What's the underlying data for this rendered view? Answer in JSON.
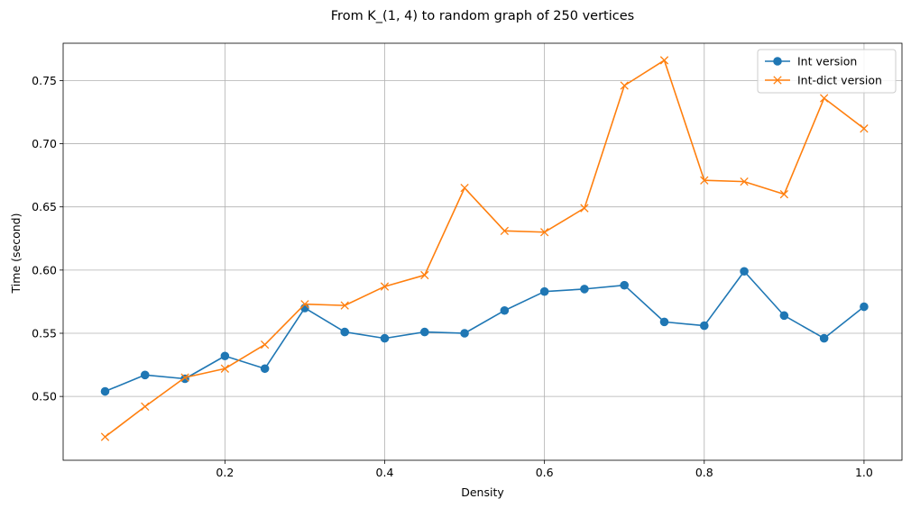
{
  "chart_data": {
    "type": "line",
    "title": "From K_(1, 4) to random graph of 250 vertices",
    "xlabel": "Density",
    "ylabel": "Time (second)",
    "xlim": [
      -0.0025,
      1.0475
    ],
    "ylim": [
      0.4495,
      0.7795
    ],
    "xticks": [
      0.2,
      0.4,
      0.6,
      0.8,
      1.0
    ],
    "xtick_labels": [
      "0.2",
      "0.4",
      "0.6",
      "0.8",
      "1.0"
    ],
    "yticks": [
      0.5,
      0.55,
      0.6,
      0.65,
      0.7,
      0.75
    ],
    "ytick_labels": [
      "0.50",
      "0.55",
      "0.60",
      "0.65",
      "0.70",
      "0.75"
    ],
    "grid": true,
    "legend_position": "top-right",
    "x": [
      0.05,
      0.1,
      0.15,
      0.2,
      0.25,
      0.3,
      0.35,
      0.4,
      0.45,
      0.5,
      0.55,
      0.6,
      0.65,
      0.7,
      0.75,
      0.8,
      0.85,
      0.9,
      0.95,
      1.0
    ],
    "series": [
      {
        "name": "Int version",
        "color": "#1f77b4",
        "marker": "circle",
        "values": [
          0.504,
          0.517,
          0.514,
          0.532,
          0.522,
          0.57,
          0.551,
          0.546,
          0.551,
          0.55,
          0.568,
          0.583,
          0.585,
          0.588,
          0.559,
          0.556,
          0.599,
          0.564,
          0.546,
          0.571
        ]
      },
      {
        "name": "Int-dict version",
        "color": "#ff7f0e",
        "marker": "x",
        "values": [
          0.468,
          0.492,
          0.515,
          0.522,
          0.541,
          0.573,
          0.572,
          0.587,
          0.596,
          0.665,
          0.631,
          0.63,
          0.649,
          0.746,
          0.766,
          0.671,
          0.67,
          0.66,
          0.736,
          0.712
        ]
      }
    ]
  },
  "colors": {
    "grid": "#b0b0b0",
    "axes": "#000000"
  }
}
